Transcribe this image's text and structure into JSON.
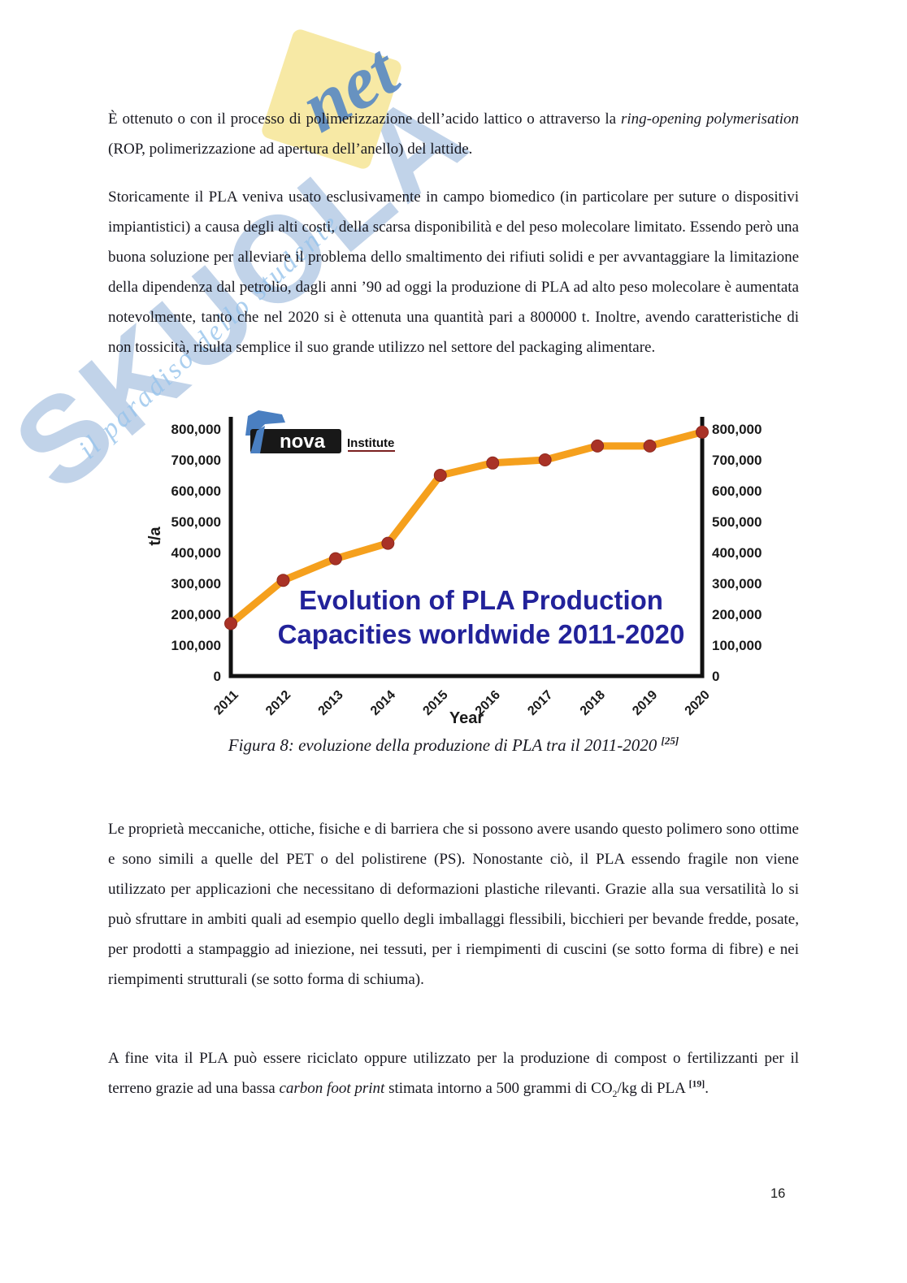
{
  "page": {
    "number": "16"
  },
  "watermark": {
    "brand": "SKUOLA",
    "brand_suffix": "net",
    "tagline": "il paradiso dello studente"
  },
  "paragraphs": {
    "p1": [
      {
        "text": "È ottenuto o con il processo di polimerizzazione dell’acido lattico o attraverso la ",
        "style": "n"
      },
      {
        "text": "ring-opening polymerisation",
        "style": "i"
      },
      {
        "text": " (ROP, polimerizzazione ad apertura dell’anello) del lattide.",
        "style": "n"
      }
    ],
    "p2": [
      {
        "text": "Storicamente il PLA veniva usato esclusivamente in campo biomedico (in particolare per suture o dispositivi impiantistici) a causa degli alti costi, della scarsa disponibilità e del peso molecolare limitato. Essendo però una buona soluzione per alleviare il problema dello smaltimento dei rifiuti solidi e per avvantaggiare la limitazione della dipendenza dal petrolio, dagli anni ’90 ad oggi la produzione di PLA ad alto peso molecolare è aumentata notevolmente, tanto che nel 2020 si è ottenuta una quantità pari a 800000 t. Inoltre, avendo caratteristiche di non tossicità, risulta semplice il suo grande utilizzo nel settore del packaging alimentare.",
        "style": "n"
      }
    ],
    "p3": [
      {
        "text": "Le proprietà meccaniche, ottiche, fisiche e di barriera che si possono avere usando questo polimero sono ottime e sono simili a quelle del PET o del polistirene (PS). Nonostante ciò, il PLA essendo fragile non viene utilizzato per applicazioni che necessitano di deformazioni plastiche rilevanti. Grazie alla sua versatilità lo si può sfruttare in ambiti quali ad esempio quello degli imballaggi flessibili, bicchieri per bevande fredde, posate, per prodotti a stampaggio ad iniezione, nei tessuti, per i riempimenti di cuscini (se sotto forma di fibre) e nei riempimenti strutturali (se sotto forma di schiuma).",
        "style": "n"
      }
    ],
    "p4": [
      {
        "text": "A fine vita il PLA può essere riciclato oppure utilizzato per la produzione di compost o fertilizzanti per il terreno grazie ad una bassa ",
        "style": "n"
      },
      {
        "text": "carbon foot print",
        "style": "i"
      },
      {
        "text": " stimata intorno a 500 grammi di CO",
        "style": "n"
      },
      {
        "text": "2",
        "style": "sub"
      },
      {
        "text": "/kg di PLA ",
        "style": "n"
      },
      {
        "text": "[19]",
        "style": "sup"
      },
      {
        "text": ".",
        "style": "n"
      }
    ]
  },
  "figure": {
    "caption": [
      {
        "text": "Figura 8: evoluzione della produzione di PLA tra il 2011-2020 ",
        "style": "i"
      },
      {
        "text": "[25]",
        "style": "isup"
      }
    ]
  },
  "chart_data": {
    "type": "line",
    "title_lines": [
      "Evolution of PLA Production",
      "Capacities worldwide 2011-2020"
    ],
    "x": [
      "2011",
      "2012",
      "2013",
      "2014",
      "2015",
      "2016",
      "2017",
      "2018",
      "2019",
      "2020"
    ],
    "values": [
      170000,
      310000,
      380000,
      430000,
      650000,
      690000,
      700000,
      745000,
      745000,
      790000
    ],
    "xlabel": "Year",
    "ylabel": "t/a",
    "ylim": [
      0,
      800000
    ],
    "ytick_step": 100000,
    "yticks": [
      "0",
      "100,000",
      "200,000",
      "300,000",
      "400,000",
      "500,000",
      "600,000",
      "700,000",
      "800,000"
    ],
    "grid": false,
    "legend": "none",
    "line_color": "#F5A01D",
    "marker_color": "#A93226",
    "title_color": "#22229A",
    "source_logo": {
      "primary": "nova",
      "secondary": "Institute"
    }
  }
}
